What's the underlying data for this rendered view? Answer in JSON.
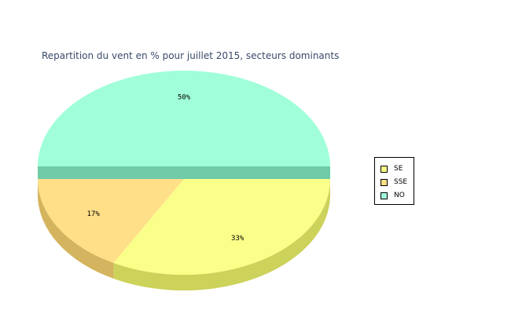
{
  "chart_data": {
    "type": "pie",
    "title": "Repartition du vent en % pour juillet 2015, secteurs dominants",
    "slices": [
      {
        "label": "SE",
        "value": 33,
        "display": "33%",
        "color": "#f9ff88",
        "side_color": "#cdd25a"
      },
      {
        "label": "SSE",
        "value": 17,
        "display": "17%",
        "color": "#ffdf88",
        "side_color": "#d4b45e"
      },
      {
        "label": "NO",
        "value": 50,
        "display": "50%",
        "color": "#a0ffd8",
        "side_color": "#6fcba8",
        "exploded": true
      }
    ],
    "legend_position": "right",
    "start_angle": "three-o-clock",
    "direction": "clockwise",
    "style": "3d"
  }
}
